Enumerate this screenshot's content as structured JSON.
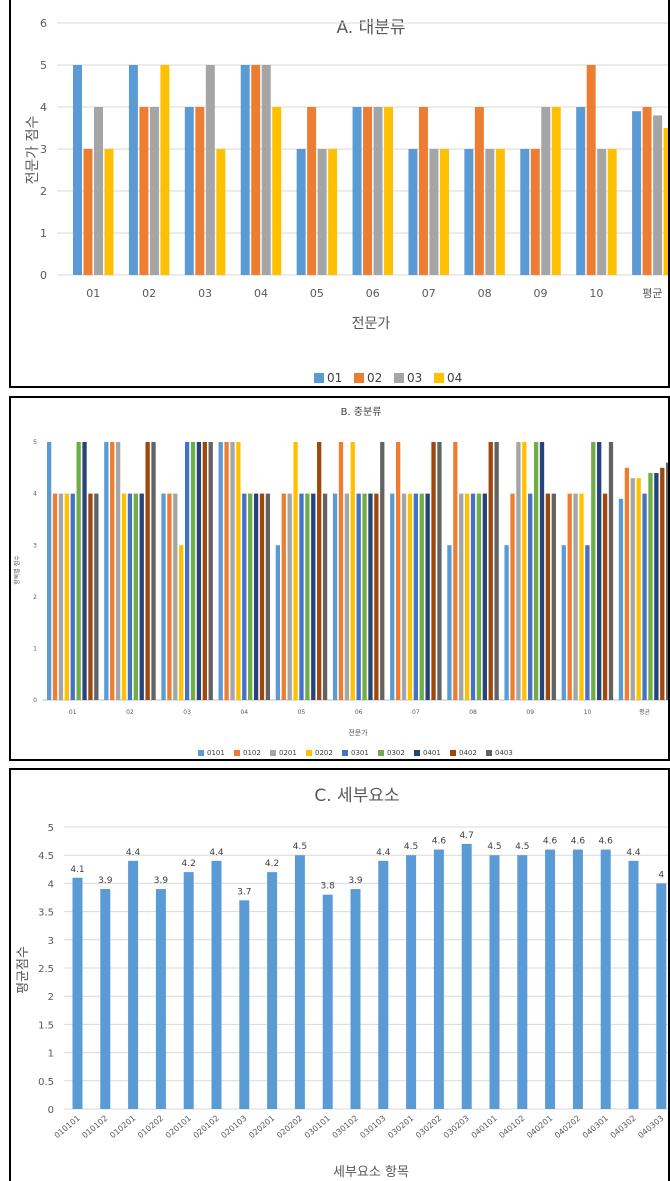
{
  "chart_data": [
    {
      "type": "bar",
      "title": "A. 대분류",
      "xlabel": "전문가",
      "ylabel": "전문가 점수",
      "ylim": [
        0,
        6
      ],
      "yticks": [
        "0",
        "1",
        "2",
        "3",
        "4",
        "5",
        "6"
      ],
      "grid": true,
      "legend": "bottom",
      "categories": [
        "01",
        "02",
        "03",
        "04",
        "05",
        "06",
        "07",
        "08",
        "09",
        "10",
        "평균"
      ],
      "series": [
        {
          "name": "01",
          "color": "#5b9bd5",
          "values": [
            5,
            5,
            4,
            5,
            3,
            4,
            3,
            3,
            3,
            4,
            3.9
          ]
        },
        {
          "name": "02",
          "color": "#ed7d31",
          "values": [
            3,
            4,
            4,
            5,
            4,
            4,
            4,
            4,
            3,
            5,
            4.0
          ]
        },
        {
          "name": "03",
          "color": "#a5a5a5",
          "values": [
            4,
            4,
            5,
            5,
            3,
            4,
            3,
            3,
            4,
            3,
            3.8
          ]
        },
        {
          "name": "04",
          "color": "#ffc000",
          "values": [
            3,
            5,
            3,
            4,
            3,
            4,
            3,
            3,
            4,
            3,
            3.5
          ]
        }
      ]
    },
    {
      "type": "bar",
      "title": "B. 중분류",
      "xlabel": "전문가",
      "ylabel": "항목별 점수",
      "ylim": [
        0,
        5
      ],
      "yticks": [
        "0",
        "1",
        "2",
        "3",
        "4",
        "5"
      ],
      "grid": false,
      "legend": "bottom",
      "categories": [
        "01",
        "02",
        "03",
        "04",
        "05",
        "06",
        "07",
        "08",
        "09",
        "10",
        "평균"
      ],
      "series": [
        {
          "name": "0101",
          "color": "#5b9bd5",
          "values": [
            5,
            5,
            4,
            5,
            3,
            4,
            4,
            3,
            3,
            3,
            3.9
          ]
        },
        {
          "name": "0102",
          "color": "#ed7d31",
          "values": [
            4,
            5,
            4,
            5,
            4,
            5,
            5,
            5,
            4,
            4,
            4.5
          ]
        },
        {
          "name": "0201",
          "color": "#a5a5a5",
          "values": [
            4,
            5,
            4,
            5,
            4,
            4,
            4,
            4,
            5,
            4,
            4.3
          ]
        },
        {
          "name": "0202",
          "color": "#ffc000",
          "values": [
            4,
            4,
            3,
            5,
            5,
            5,
            4,
            4,
            5,
            4,
            4.3
          ]
        },
        {
          "name": "0301",
          "color": "#4472c4",
          "values": [
            4,
            4,
            5,
            4,
            4,
            4,
            4,
            4,
            4,
            3,
            4.0
          ]
        },
        {
          "name": "0302",
          "color": "#70ad47",
          "values": [
            5,
            4,
            5,
            4,
            4,
            4,
            4,
            4,
            5,
            5,
            4.4
          ]
        },
        {
          "name": "0401",
          "color": "#264478",
          "values": [
            5,
            4,
            5,
            4,
            4,
            4,
            4,
            4,
            5,
            5,
            4.4
          ]
        },
        {
          "name": "0402",
          "color": "#9e480e",
          "values": [
            4,
            5,
            5,
            4,
            5,
            4,
            5,
            5,
            4,
            4,
            4.5
          ]
        },
        {
          "name": "0403",
          "color": "#636363",
          "values": [
            4,
            5,
            5,
            4,
            4,
            5,
            5,
            5,
            4,
            5,
            4.6
          ]
        }
      ]
    },
    {
      "type": "bar",
      "title": "C. 세부요소",
      "xlabel": "세부요소 항목",
      "ylabel": "평균점수",
      "ylim": [
        0,
        5
      ],
      "yticks": [
        "0",
        "0.5",
        "1",
        "1.5",
        "2",
        "2.5",
        "3",
        "3.5",
        "4",
        "4.5",
        "5"
      ],
      "grid": true,
      "color": "#5b9bd5",
      "categories": [
        "010101",
        "010102",
        "010201",
        "010202",
        "020101",
        "020102",
        "020103",
        "020201",
        "020202",
        "030101",
        "030102",
        "030103",
        "030201",
        "030202",
        "030203",
        "040101",
        "040102",
        "040201",
        "040202",
        "040301",
        "040302",
        "040303"
      ],
      "values": [
        4.1,
        3.9,
        4.4,
        3.9,
        4.2,
        4.4,
        3.7,
        4.2,
        4.5,
        3.8,
        3.9,
        4.4,
        4.5,
        4.6,
        4.7,
        4.5,
        4.5,
        4.6,
        4.6,
        4.6,
        4.4,
        4
      ],
      "value_labels": [
        "4.1",
        "3.9",
        "4.4",
        "3.9",
        "4.2",
        "4.4",
        "3.7",
        "4.2",
        "4.5",
        "3.8",
        "3.9",
        "4.4",
        "4.5",
        "4.6",
        "4.7",
        "4.5",
        "4.5",
        "4.6",
        "4.6",
        "4.6",
        "4.4",
        "4"
      ]
    }
  ]
}
